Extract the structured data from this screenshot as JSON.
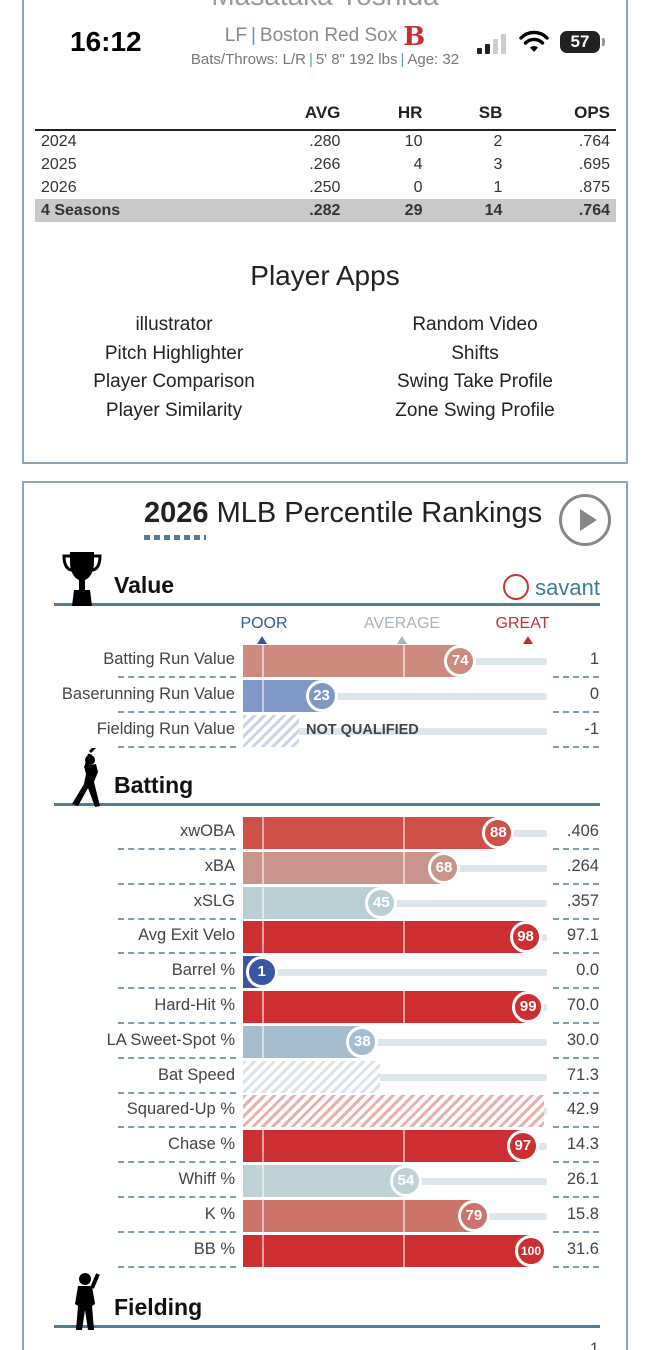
{
  "status": {
    "time": "16:12",
    "battery": "57"
  },
  "player": {
    "name_cut": "Masataka Yoshida",
    "position": "LF",
    "team": "Boston Red Sox",
    "team_logo": "B",
    "bio_bats": "Bats/Throws: L/R",
    "bio_size": "5' 8\" 192 lbs",
    "bio_age": "Age: 32",
    "sep": "|"
  },
  "stats_table": {
    "headers": [
      "",
      "AVG",
      "HR",
      "SB",
      "OPS"
    ],
    "rows": [
      [
        "2024",
        ".280",
        "10",
        "2",
        ".764"
      ],
      [
        "2025",
        ".266",
        "4",
        "3",
        ".695"
      ],
      [
        "2026",
        ".250",
        "0",
        "1",
        ".875"
      ],
      [
        "4 Seasons",
        ".282",
        "29",
        "14",
        ".764"
      ]
    ]
  },
  "apps": {
    "title": "Player Apps",
    "left": [
      "illustrator",
      "Pitch Highlighter",
      "Player Comparison",
      "Player Similarity"
    ],
    "right": [
      "Random Video",
      "Shifts",
      "Swing Take Profile",
      "Zone Swing Profile"
    ]
  },
  "rankings": {
    "title_year": "2026",
    "title_rest": " MLB Percentile Rankings",
    "savant_label": "savant",
    "scale": {
      "poor": "POOR",
      "average": "AVERAGE",
      "great": "GREAT"
    },
    "not_qualified": "NOT QUALIFIED",
    "sections": [
      {
        "label": "Value",
        "icon": "trophy-icon"
      },
      {
        "label": "Batting",
        "icon": "batter-icon"
      },
      {
        "label": "Fielding",
        "icon": "fielder-icon"
      }
    ],
    "value_metrics": [
      {
        "label": "Batting Run Value",
        "percentile": 74,
        "value": "1",
        "color": "#cd8a7e"
      },
      {
        "label": "Baserunning Run Value",
        "percentile": 23,
        "value": "0",
        "color": "#7f98c8"
      },
      {
        "label": "Fielding Run Value",
        "percentile": null,
        "value": "-1",
        "qualified": false
      }
    ],
    "batting_metrics": [
      {
        "label": "xwOBA",
        "percentile": 88,
        "value": ".406",
        "color": "#cf4f49"
      },
      {
        "label": "xBA",
        "percentile": 68,
        "value": ".264",
        "color": "#c8948b"
      },
      {
        "label": "xSLG",
        "percentile": 45,
        "value": ".357",
        "color": "#b9cfd4"
      },
      {
        "label": "Avg Exit Velo",
        "percentile": 98,
        "value": "97.1",
        "color": "#cc2e31"
      },
      {
        "label": "Barrel %",
        "percentile": 1,
        "value": "0.0",
        "color": "#3856a4"
      },
      {
        "label": "Hard-Hit %",
        "percentile": 99,
        "value": "70.0",
        "color": "#cc2e31"
      },
      {
        "label": "LA Sweet-Spot %",
        "percentile": 38,
        "value": "30.0",
        "color": "#a6bdd0"
      },
      {
        "label": "Bat Speed",
        "percentile": null,
        "value": "71.3",
        "hatch": "blue"
      },
      {
        "label": "Squared-Up %",
        "percentile": null,
        "value": "42.9",
        "hatch": "red"
      },
      {
        "label": "Chase %",
        "percentile": 97,
        "value": "14.3",
        "color": "#cc2e31"
      },
      {
        "label": "Whiff %",
        "percentile": 54,
        "value": "26.1",
        "color": "#bfd3d6"
      },
      {
        "label": "K %",
        "percentile": 79,
        "value": "15.8",
        "color": "#cc7469"
      },
      {
        "label": "BB %",
        "percentile": 100,
        "value": "31.6",
        "color": "#cc2e31"
      }
    ],
    "fielding_partial": {
      "value": "1"
    }
  },
  "colors": {
    "card_border": "#8aa9b6",
    "accent_teal": "#4a7f97",
    "great": "#c8302f",
    "poor": "#3856a4",
    "average": "#a9b6bd"
  }
}
